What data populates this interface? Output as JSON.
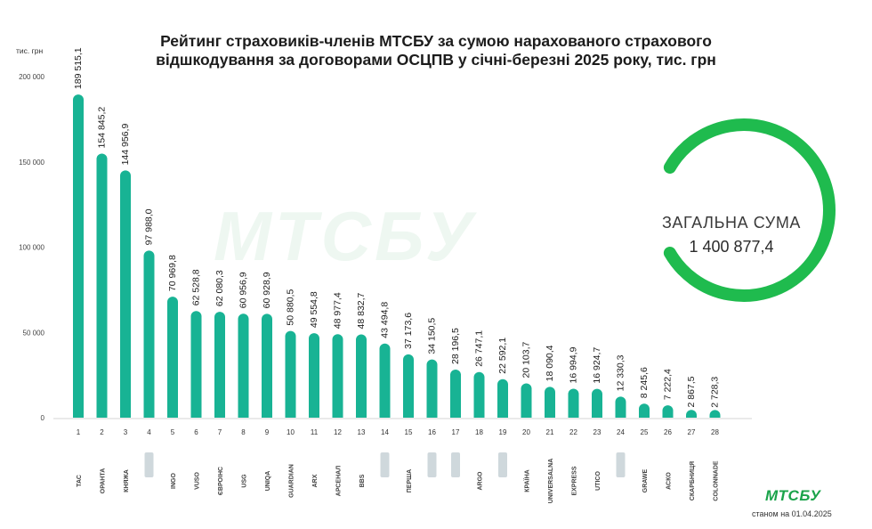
{
  "title_lines": [
    "Рейтинг страховиків-членів МТСБУ за сумою нарахованого страхового",
    "відшкодування за договорами ОСЦПВ у січні-березні 2025 року, тис. грн"
  ],
  "unit_label": "тис. грн",
  "watermark_text": "МТСБУ",
  "total": {
    "label": "ЗАГАЛЬНА СУМА",
    "value": "1 400 877,4"
  },
  "footer": {
    "logo_text": "МТСБУ",
    "date_text": "станом на 01.04.2025"
  },
  "colors": {
    "bar": "#18b394",
    "ring": "#1fbb4e",
    "text": "#1c1c1c"
  },
  "chart_data": {
    "type": "bar",
    "title": "Рейтинг страховиків-членів МТСБУ за сумою нарахованого страхового відшкодування за договорами ОСЦПВ у січні-березні 2025 року, тис. грн",
    "ylabel": "тис. грн",
    "ylim": [
      0,
      200000
    ],
    "yticks": [
      0,
      50000,
      100000,
      150000,
      200000
    ],
    "ytick_labels": [
      "0",
      "50 000",
      "100 000",
      "150 000",
      "200 000"
    ],
    "grid": false,
    "categories": [
      "1",
      "2",
      "3",
      "4",
      "5",
      "6",
      "7",
      "8",
      "9",
      "10",
      "11",
      "12",
      "13",
      "14",
      "15",
      "16",
      "17",
      "18",
      "19",
      "20",
      "21",
      "22",
      "23",
      "24",
      "25",
      "26",
      "27",
      "28"
    ],
    "values": [
      189515.1,
      154845.2,
      144956.9,
      97988.0,
      70969.8,
      62528.8,
      62080.3,
      60956.9,
      60928.9,
      50880.5,
      49554.8,
      48977.4,
      48832.7,
      43494.8,
      37173.6,
      34150.5,
      28196.5,
      26747.1,
      22592.1,
      20103.7,
      18090.4,
      16994.9,
      16924.7,
      12330.3,
      8245.6,
      7222.4,
      2867.5,
      2728.3
    ],
    "value_labels": [
      "189 515,1",
      "154 845,2",
      "144 956,9",
      "97 988,0",
      "70 969,8",
      "62 528,8",
      "62 080,3",
      "60 956,9",
      "60 928,9",
      "50 880,5",
      "49 554,8",
      "48 977,4",
      "48 832,7",
      "43 494,8",
      "37 173,6",
      "34 150,5",
      "28 196,5",
      "26 747,1",
      "22 592,1",
      "20 103,7",
      "18 090,4",
      "16 994,9",
      "16 924,7",
      "12 330,3",
      "8 245,6",
      "7 222,4",
      "2 867,5",
      "2 728,3"
    ],
    "company_logos": [
      "ТАС",
      "ОРАНТА",
      "КНЯЖА",
      "",
      "INGO",
      "VUSO",
      "ЄВРОІНС",
      "USG",
      "UNIQA",
      "GUARDIAN",
      "ARX",
      "АРСЕНАЛ",
      "BBS",
      "",
      "ПЕРША",
      "",
      "",
      "ARGO",
      "",
      "КРАЇНА",
      "UNIVERSALNA",
      "EXPRESS",
      "UTICO",
      "",
      "GRAWE",
      "АСКО",
      "СКАРБНИЦЯ",
      "COLONNADE"
    ]
  }
}
